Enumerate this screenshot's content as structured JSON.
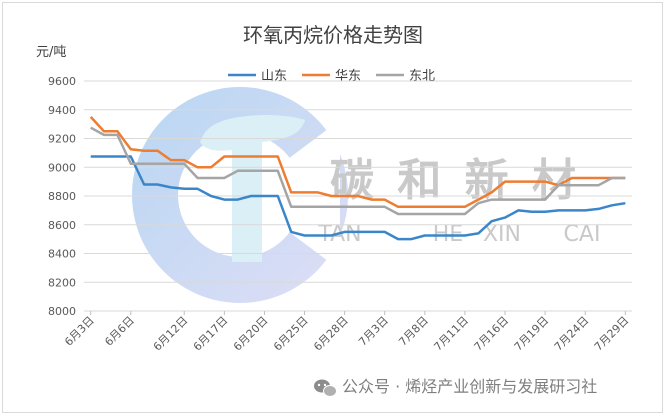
{
  "chart_data": {
    "type": "line",
    "title": "环氧丙烷价格走势图",
    "ylabel": "元/吨",
    "ylim": [
      8000,
      9600
    ],
    "yticks": [
      8000,
      8200,
      8400,
      8600,
      8800,
      9000,
      9200,
      9400,
      9600
    ],
    "grid": true,
    "legend_position": "top",
    "x": [
      "6月3日",
      "6月4日",
      "6月5日",
      "6月6日",
      "6月7日",
      "6月10日",
      "6月11日",
      "6月12日",
      "6月13日",
      "6月14日",
      "6月17日",
      "6月18日",
      "6月19日",
      "6月20日",
      "6月21日",
      "6月24日",
      "6月25日",
      "6月26日",
      "6月27日",
      "6月28日",
      "7月1日",
      "7月2日",
      "7月3日",
      "7月4日",
      "7月5日",
      "7月8日",
      "7月9日",
      "7月10日",
      "7月11日",
      "7月12日",
      "7月15日",
      "7月16日",
      "7月17日",
      "7月18日",
      "7月19日",
      "7月22日",
      "7月23日",
      "7月24日",
      "7月25日",
      "7月26日",
      "7月29日"
    ],
    "tick_labels": [
      "6月3日",
      "6月6日",
      "6月12日",
      "6月17日",
      "6月20日",
      "6月25日",
      "6月28日",
      "7月3日",
      "7月8日",
      "7月11日",
      "7月16日",
      "7月19日",
      "7月24日",
      "7月29日"
    ],
    "tick_indices": [
      0,
      3,
      7,
      10,
      13,
      16,
      19,
      22,
      25,
      28,
      31,
      34,
      37,
      40
    ],
    "series": [
      {
        "name": "山东",
        "color": "#3b86c9",
        "values": [
          9075,
          9075,
          9075,
          9075,
          8880,
          8880,
          8860,
          8850,
          8850,
          8800,
          8775,
          8775,
          8800,
          8800,
          8800,
          8550,
          8525,
          8525,
          8525,
          8550,
          8550,
          8550,
          8550,
          8500,
          8500,
          8525,
          8525,
          8525,
          8525,
          8540,
          8625,
          8650,
          8700,
          8690,
          8690,
          8700,
          8700,
          8700,
          8710,
          8735,
          8750
        ]
      },
      {
        "name": "华东",
        "color": "#ed7d31",
        "values": [
          9350,
          9250,
          9250,
          9125,
          9115,
          9115,
          9050,
          9050,
          9000,
          9000,
          9075,
          9075,
          9075,
          9075,
          9075,
          8825,
          8825,
          8825,
          8800,
          8800,
          8800,
          8775,
          8775,
          8725,
          8725,
          8725,
          8725,
          8725,
          8725,
          8775,
          8825,
          8900,
          8900,
          8900,
          8900,
          8875,
          8925,
          8925,
          8925,
          8925,
          8925
        ]
      },
      {
        "name": "东北",
        "color": "#a5a5a5",
        "values": [
          9275,
          9225,
          9225,
          9025,
          9025,
          9025,
          9025,
          9025,
          8925,
          8925,
          8925,
          8975,
          8975,
          8975,
          8975,
          8725,
          8725,
          8725,
          8725,
          8725,
          8725,
          8725,
          8725,
          8675,
          8675,
          8675,
          8675,
          8675,
          8675,
          8750,
          8775,
          8775,
          8775,
          8775,
          8775,
          8875,
          8875,
          8875,
          8875,
          8925,
          8925
        ]
      }
    ]
  },
  "watermark": {
    "text": "碳 和 新 材",
    "sub": [
      "TAN",
      "HE",
      "XIN",
      "CAI"
    ]
  },
  "footer": {
    "icon": "wechat-icon",
    "text": "公众号 · 烯烃产业创新与发展研习社"
  }
}
